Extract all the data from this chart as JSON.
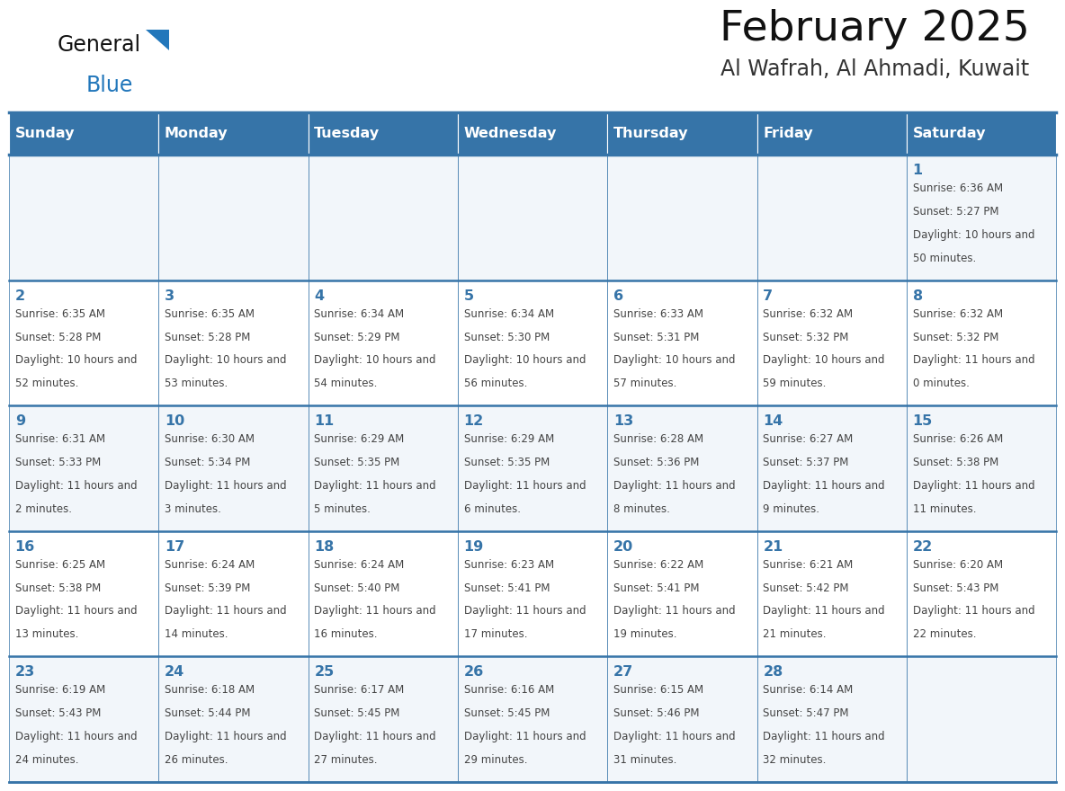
{
  "title": "February 2025",
  "subtitle": "Al Wafrah, Al Ahmadi, Kuwait",
  "days_of_week": [
    "Sunday",
    "Monday",
    "Tuesday",
    "Wednesday",
    "Thursday",
    "Friday",
    "Saturday"
  ],
  "header_bg": "#3674a8",
  "header_text": "#ffffff",
  "cell_bg_odd": "#f2f6fa",
  "cell_bg_even": "#ffffff",
  "border_color": "#3674a8",
  "day_num_color": "#3674a8",
  "text_color": "#444444",
  "title_color": "#111111",
  "subtitle_color": "#333333",
  "calendar_data": [
    [
      null,
      null,
      null,
      null,
      null,
      null,
      {
        "day": "1",
        "sunrise": "6:36 AM",
        "sunset": "5:27 PM",
        "daylight": "10 hours and 50 minutes."
      }
    ],
    [
      {
        "day": "2",
        "sunrise": "6:35 AM",
        "sunset": "5:28 PM",
        "daylight": "10 hours and 52 minutes."
      },
      {
        "day": "3",
        "sunrise": "6:35 AM",
        "sunset": "5:28 PM",
        "daylight": "10 hours and 53 minutes."
      },
      {
        "day": "4",
        "sunrise": "6:34 AM",
        "sunset": "5:29 PM",
        "daylight": "10 hours and 54 minutes."
      },
      {
        "day": "5",
        "sunrise": "6:34 AM",
        "sunset": "5:30 PM",
        "daylight": "10 hours and 56 minutes."
      },
      {
        "day": "6",
        "sunrise": "6:33 AM",
        "sunset": "5:31 PM",
        "daylight": "10 hours and 57 minutes."
      },
      {
        "day": "7",
        "sunrise": "6:32 AM",
        "sunset": "5:32 PM",
        "daylight": "10 hours and 59 minutes."
      },
      {
        "day": "8",
        "sunrise": "6:32 AM",
        "sunset": "5:32 PM",
        "daylight": "11 hours and 0 minutes."
      }
    ],
    [
      {
        "day": "9",
        "sunrise": "6:31 AM",
        "sunset": "5:33 PM",
        "daylight": "11 hours and 2 minutes."
      },
      {
        "day": "10",
        "sunrise": "6:30 AM",
        "sunset": "5:34 PM",
        "daylight": "11 hours and 3 minutes."
      },
      {
        "day": "11",
        "sunrise": "6:29 AM",
        "sunset": "5:35 PM",
        "daylight": "11 hours and 5 minutes."
      },
      {
        "day": "12",
        "sunrise": "6:29 AM",
        "sunset": "5:35 PM",
        "daylight": "11 hours and 6 minutes."
      },
      {
        "day": "13",
        "sunrise": "6:28 AM",
        "sunset": "5:36 PM",
        "daylight": "11 hours and 8 minutes."
      },
      {
        "day": "14",
        "sunrise": "6:27 AM",
        "sunset": "5:37 PM",
        "daylight": "11 hours and 9 minutes."
      },
      {
        "day": "15",
        "sunrise": "6:26 AM",
        "sunset": "5:38 PM",
        "daylight": "11 hours and 11 minutes."
      }
    ],
    [
      {
        "day": "16",
        "sunrise": "6:25 AM",
        "sunset": "5:38 PM",
        "daylight": "11 hours and 13 minutes."
      },
      {
        "day": "17",
        "sunrise": "6:24 AM",
        "sunset": "5:39 PM",
        "daylight": "11 hours and 14 minutes."
      },
      {
        "day": "18",
        "sunrise": "6:24 AM",
        "sunset": "5:40 PM",
        "daylight": "11 hours and 16 minutes."
      },
      {
        "day": "19",
        "sunrise": "6:23 AM",
        "sunset": "5:41 PM",
        "daylight": "11 hours and 17 minutes."
      },
      {
        "day": "20",
        "sunrise": "6:22 AM",
        "sunset": "5:41 PM",
        "daylight": "11 hours and 19 minutes."
      },
      {
        "day": "21",
        "sunrise": "6:21 AM",
        "sunset": "5:42 PM",
        "daylight": "11 hours and 21 minutes."
      },
      {
        "day": "22",
        "sunrise": "6:20 AM",
        "sunset": "5:43 PM",
        "daylight": "11 hours and 22 minutes."
      }
    ],
    [
      {
        "day": "23",
        "sunrise": "6:19 AM",
        "sunset": "5:43 PM",
        "daylight": "11 hours and 24 minutes."
      },
      {
        "day": "24",
        "sunrise": "6:18 AM",
        "sunset": "5:44 PM",
        "daylight": "11 hours and 26 minutes."
      },
      {
        "day": "25",
        "sunrise": "6:17 AM",
        "sunset": "5:45 PM",
        "daylight": "11 hours and 27 minutes."
      },
      {
        "day": "26",
        "sunrise": "6:16 AM",
        "sunset": "5:45 PM",
        "daylight": "11 hours and 29 minutes."
      },
      {
        "day": "27",
        "sunrise": "6:15 AM",
        "sunset": "5:46 PM",
        "daylight": "11 hours and 31 minutes."
      },
      {
        "day": "28",
        "sunrise": "6:14 AM",
        "sunset": "5:47 PM",
        "daylight": "11 hours and 32 minutes."
      },
      null
    ]
  ]
}
